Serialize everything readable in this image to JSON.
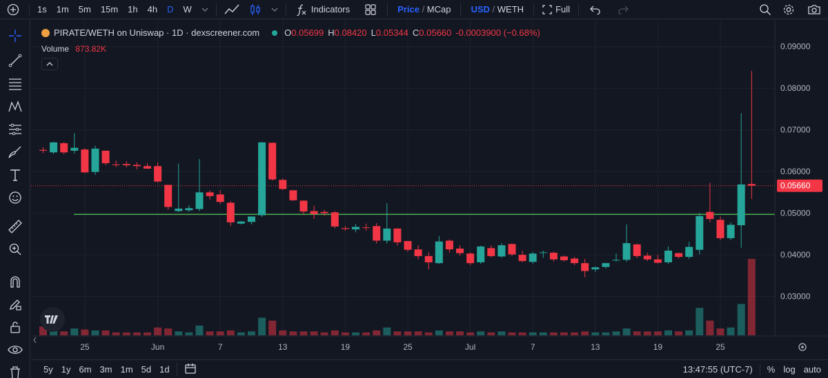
{
  "toolbar": {
    "intervals": [
      "1s",
      "1m",
      "5m",
      "15m",
      "1h",
      "4h",
      "D",
      "W"
    ],
    "active_interval": "D",
    "indicators_label": "Indicators",
    "price_label": "Price",
    "mcap_label": "MCap",
    "usd_label": "USD",
    "weth_label": "WETH",
    "full_label": "Full"
  },
  "legend": {
    "title": "PIRATE/WETH on Uniswap · 1D · dexscreener.com",
    "o_label": "O",
    "o": "0.05699",
    "h_label": "H",
    "h": "0.08420",
    "l_label": "L",
    "l": "0.05344",
    "c_label": "C",
    "c": "0.05660",
    "change": "-0.0003900 (−0.68%)",
    "volume_label": "Volume",
    "volume_value": "873.82K"
  },
  "bottom": {
    "ranges": [
      "5y",
      "1y",
      "6m",
      "3m",
      "1m",
      "5d",
      "1d"
    ],
    "time": "13:47:55 (UTC-7)",
    "percent_label": "%",
    "log_label": "log",
    "auto_label": "auto"
  },
  "colors": {
    "up": "#26a69a",
    "down": "#f23645",
    "background": "#131722",
    "grid": "#1e222d",
    "hline": "#4caf50"
  },
  "chart_data": {
    "type": "candlestick",
    "price_axis": [
      "0.09000",
      "0.08000",
      "0.07000",
      "0.06000",
      "0.05000",
      "0.04000",
      "0.03000"
    ],
    "ylim": [
      0.0205,
      0.0964
    ],
    "current_price": "0.05660",
    "horizontal_line": 0.0497,
    "x_ticks": [
      {
        "label": "25",
        "index": 4
      },
      {
        "label": "Jun",
        "index": 11
      },
      {
        "label": "7",
        "index": 17
      },
      {
        "label": "13",
        "index": 23
      },
      {
        "label": "19",
        "index": 29
      },
      {
        "label": "25",
        "index": 35
      },
      {
        "label": "Jul",
        "index": 41
      },
      {
        "label": "7",
        "index": 47
      },
      {
        "label": "13",
        "index": 53
      },
      {
        "label": "19",
        "index": 59
      },
      {
        "label": "25",
        "index": 65
      }
    ],
    "candles": [
      [
        0.0652,
        0.0659,
        0.0644,
        0.065,
        9
      ],
      [
        0.0646,
        0.0671,
        0.0642,
        0.067,
        5
      ],
      [
        0.0668,
        0.0671,
        0.0641,
        0.0646,
        4
      ],
      [
        0.065,
        0.0692,
        0.0643,
        0.0657,
        7
      ],
      [
        0.0653,
        0.0656,
        0.0596,
        0.0598,
        6
      ],
      [
        0.0599,
        0.0662,
        0.0592,
        0.0655,
        5
      ],
      [
        0.065,
        0.065,
        0.0615,
        0.062,
        5
      ],
      [
        0.0617,
        0.0626,
        0.0611,
        0.0616,
        3
      ],
      [
        0.0618,
        0.0625,
        0.061,
        0.0615,
        3
      ],
      [
        0.0616,
        0.0622,
        0.0605,
        0.0613,
        3
      ],
      [
        0.0613,
        0.062,
        0.0606,
        0.0607,
        3
      ],
      [
        0.0613,
        0.0622,
        0.0573,
        0.0576,
        8
      ],
      [
        0.0568,
        0.0568,
        0.0508,
        0.0515,
        7
      ],
      [
        0.0505,
        0.0619,
        0.0503,
        0.0511,
        4
      ],
      [
        0.0507,
        0.0519,
        0.0503,
        0.0512,
        3
      ],
      [
        0.051,
        0.063,
        0.0505,
        0.055,
        10
      ],
      [
        0.055,
        0.0555,
        0.0533,
        0.0541,
        4
      ],
      [
        0.0545,
        0.0555,
        0.0522,
        0.0527,
        4
      ],
      [
        0.0525,
        0.0529,
        0.0469,
        0.0478,
        5
      ],
      [
        0.0475,
        0.0481,
        0.0473,
        0.048,
        3
      ],
      [
        0.0479,
        0.0492,
        0.0473,
        0.0492,
        4
      ],
      [
        0.0495,
        0.0671,
        0.0491,
        0.067,
        18
      ],
      [
        0.0669,
        0.067,
        0.0578,
        0.0581,
        15
      ],
      [
        0.058,
        0.0583,
        0.0556,
        0.0558,
        5
      ],
      [
        0.0555,
        0.0555,
        0.0529,
        0.0531,
        4
      ],
      [
        0.053,
        0.0531,
        0.0497,
        0.0504,
        4
      ],
      [
        0.0505,
        0.0518,
        0.0486,
        0.0498,
        4
      ],
      [
        0.0503,
        0.0508,
        0.0494,
        0.05,
        3
      ],
      [
        0.0502,
        0.0505,
        0.0464,
        0.0468,
        5
      ],
      [
        0.0464,
        0.0469,
        0.0458,
        0.0462,
        3
      ],
      [
        0.0461,
        0.0474,
        0.0454,
        0.0467,
        3
      ],
      [
        0.0466,
        0.0475,
        0.0458,
        0.0465,
        3
      ],
      [
        0.0469,
        0.0476,
        0.0427,
        0.0434,
        5
      ],
      [
        0.0434,
        0.0524,
        0.0427,
        0.0463,
        8
      ],
      [
        0.0463,
        0.0464,
        0.0422,
        0.043,
        4
      ],
      [
        0.0433,
        0.0433,
        0.0407,
        0.0412,
        4
      ],
      [
        0.0413,
        0.0423,
        0.0389,
        0.0397,
        4
      ],
      [
        0.0397,
        0.0406,
        0.0365,
        0.0382,
        3
      ],
      [
        0.038,
        0.0445,
        0.0378,
        0.0432,
        5
      ],
      [
        0.0434,
        0.0437,
        0.0405,
        0.0413,
        4
      ],
      [
        0.0415,
        0.0423,
        0.0398,
        0.0404,
        4
      ],
      [
        0.0403,
        0.0406,
        0.0375,
        0.038,
        3
      ],
      [
        0.0382,
        0.0422,
        0.0378,
        0.042,
        4
      ],
      [
        0.0416,
        0.0423,
        0.0394,
        0.0397,
        3
      ],
      [
        0.0396,
        0.0428,
        0.0393,
        0.0423,
        4
      ],
      [
        0.0426,
        0.0427,
        0.0397,
        0.0401,
        3
      ],
      [
        0.04,
        0.041,
        0.0382,
        0.0385,
        3
      ],
      [
        0.0383,
        0.0407,
        0.0379,
        0.0403,
        3
      ],
      [
        0.0405,
        0.041,
        0.0393,
        0.0406,
        3
      ],
      [
        0.0405,
        0.0407,
        0.0384,
        0.0389,
        3
      ],
      [
        0.0396,
        0.0398,
        0.0384,
        0.0387,
        3
      ],
      [
        0.0391,
        0.0395,
        0.0375,
        0.038,
        3
      ],
      [
        0.038,
        0.039,
        0.0346,
        0.0361,
        4
      ],
      [
        0.0365,
        0.0372,
        0.0359,
        0.037,
        3
      ],
      [
        0.0371,
        0.0381,
        0.0367,
        0.038,
        3
      ],
      [
        0.0388,
        0.0403,
        0.0384,
        0.0388,
        4
      ],
      [
        0.0388,
        0.0473,
        0.0383,
        0.0428,
        7
      ],
      [
        0.0425,
        0.0427,
        0.0392,
        0.0397,
        4
      ],
      [
        0.0398,
        0.0405,
        0.0385,
        0.0389,
        4
      ],
      [
        0.0389,
        0.04,
        0.0379,
        0.0381,
        4
      ],
      [
        0.0382,
        0.042,
        0.0378,
        0.041,
        5
      ],
      [
        0.0404,
        0.0405,
        0.0391,
        0.0395,
        4
      ],
      [
        0.0395,
        0.0431,
        0.039,
        0.0419,
        5
      ],
      [
        0.0412,
        0.0501,
        0.0401,
        0.0493,
        28
      ],
      [
        0.0503,
        0.0573,
        0.0478,
        0.0486,
        15
      ],
      [
        0.0484,
        0.0492,
        0.0435,
        0.044,
        7
      ],
      [
        0.044,
        0.0478,
        0.0435,
        0.0472,
        8
      ],
      [
        0.0471,
        0.074,
        0.0417,
        0.0569,
        32
      ],
      [
        0.057,
        0.0842,
        0.0534,
        0.0566,
        78
      ]
    ]
  }
}
